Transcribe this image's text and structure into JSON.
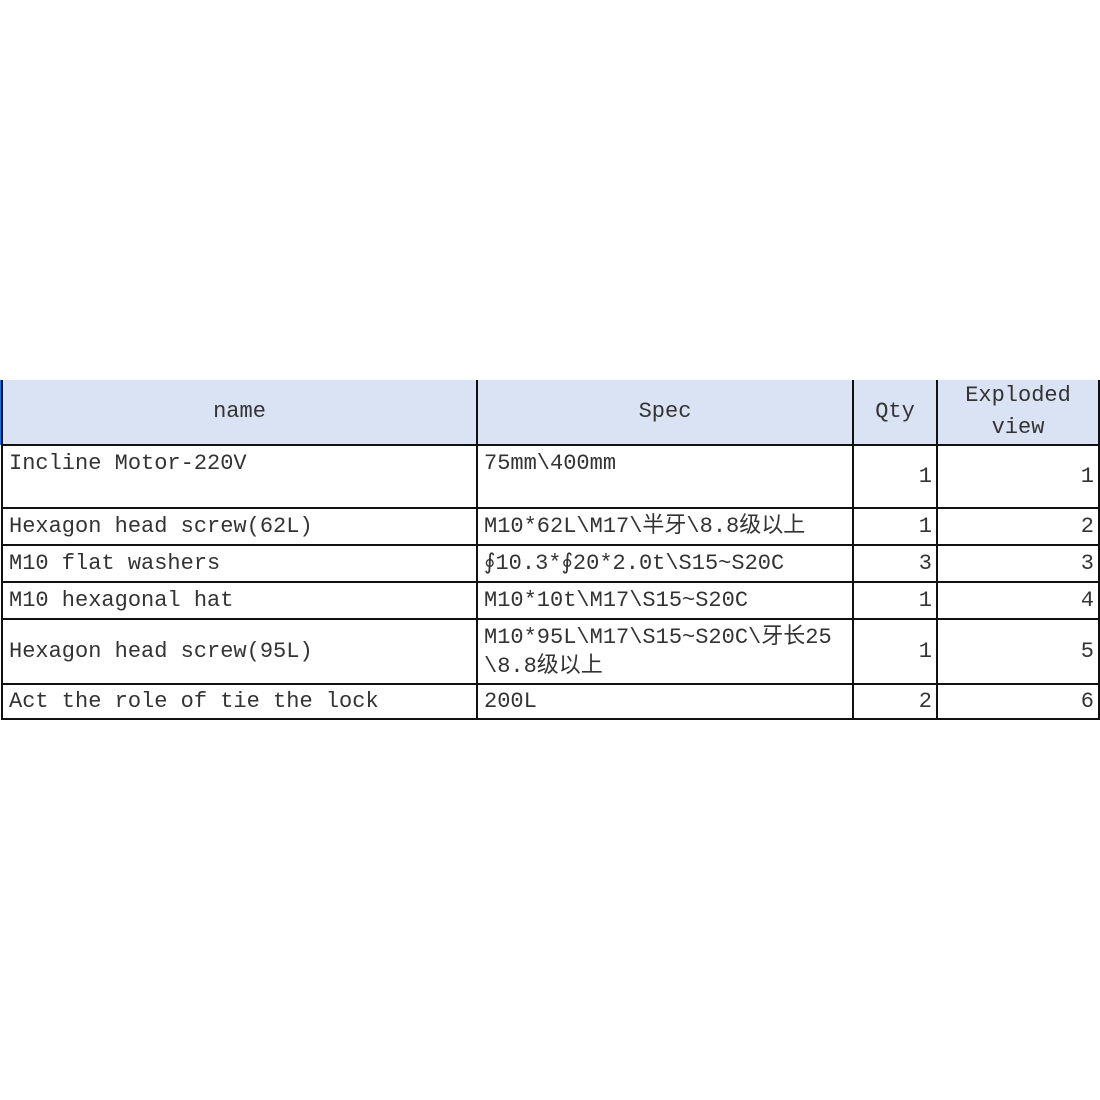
{
  "table": {
    "headers": [
      "name",
      "Spec",
      "Qty",
      "Exploded view"
    ],
    "rows": [
      {
        "name": "Incline Motor-220V",
        "spec": "75mm\\400mm",
        "qty": "1",
        "exploded_view": "1"
      },
      {
        "name": "Hexagon head screw(62L)",
        "spec": "M10*62L\\M17\\半牙\\8.8级以上",
        "qty": "1",
        "exploded_view": "2"
      },
      {
        "name": "M10 flat washers",
        "spec": "∮10.3*∮20*2.0t\\S15~S20C",
        "qty": "3",
        "exploded_view": "3"
      },
      {
        "name": "M10 hexagonal hat",
        "spec": "M10*10t\\M17\\S15~S20C",
        "qty": "1",
        "exploded_view": "4"
      },
      {
        "name": "Hexagon head screw(95L)",
        "spec": "M10*95L\\M17\\S15~S20C\\牙长25\\8.8级以上",
        "qty": "1",
        "exploded_view": "5"
      },
      {
        "name": "Act the role of tie the lock",
        "spec": "200L",
        "qty": "2",
        "exploded_view": "6"
      }
    ]
  },
  "colors": {
    "header_bg": "#dae3f3",
    "selection": "#2a6fd6"
  }
}
